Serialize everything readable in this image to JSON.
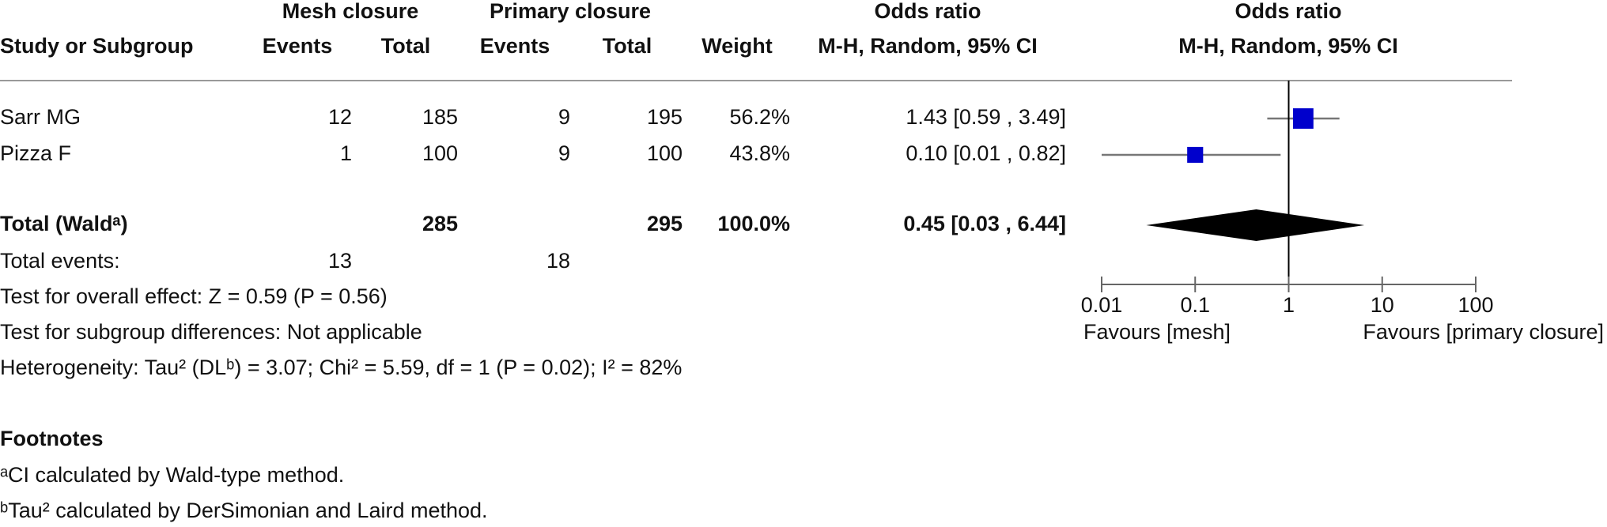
{
  "chart_data": {
    "type": "forest",
    "header_groups": [
      "Mesh closure",
      "Primary closure",
      "Odds ratio",
      "Odds ratio"
    ],
    "columns": [
      "Study or Subgroup",
      "Events",
      "Total",
      "Events",
      "Total",
      "Weight",
      "M-H, Random, 95% CI",
      "M-H, Random, 95% CI"
    ],
    "color": "#0000cc",
    "studies": [
      {
        "name": "Sarr MG",
        "events_mesh": 12,
        "total_mesh": 185,
        "events_primary": 9,
        "total_primary": 195,
        "weight": 56.2,
        "weight_label": "56.2%",
        "or": 1.43,
        "ci_low": 0.59,
        "ci_high": 3.49,
        "ci_label": "1.43 [0.59 , 3.49]"
      },
      {
        "name": "Pizza F",
        "events_mesh": 1,
        "total_mesh": 100,
        "events_primary": 9,
        "total_primary": 100,
        "weight": 43.8,
        "weight_label": "43.8%",
        "or": 0.1,
        "ci_low": 0.01,
        "ci_high": 0.82,
        "ci_label": "0.10 [0.01 , 0.82]"
      }
    ],
    "total": {
      "name": "Total (Waldᵃ)",
      "total_mesh": 285,
      "total_primary": 295,
      "weight": 100.0,
      "weight_label": "100.0%",
      "or": 0.45,
      "ci_low": 0.03,
      "ci_high": 6.44,
      "ci_label": "0.45 [0.03 , 6.44]"
    },
    "total_events": {
      "name": "Total events:",
      "events_mesh": 13,
      "events_primary": 18
    },
    "notes": [
      "Test for overall effect: Z = 0.59 (P = 0.56)",
      "Test for subgroup differences: Not applicable",
      "Heterogeneity: Tau² (DLᵇ) = 3.07; Chi² = 5.59, df = 1 (P = 0.02); I² = 82%"
    ],
    "footnotes_title": "Footnotes",
    "footnotes": [
      "ᵃCI calculated by Wald-type method.",
      "ᵇTau² calculated by DerSimonian and Laird method."
    ],
    "log_scale": true,
    "xlim": [
      0.01,
      100
    ],
    "xticks": [
      0.01,
      0.1,
      1,
      10,
      100
    ],
    "reference_line": 1,
    "favours_left": "Favours [mesh]",
    "favours_right": "Favours [primary closure]"
  }
}
